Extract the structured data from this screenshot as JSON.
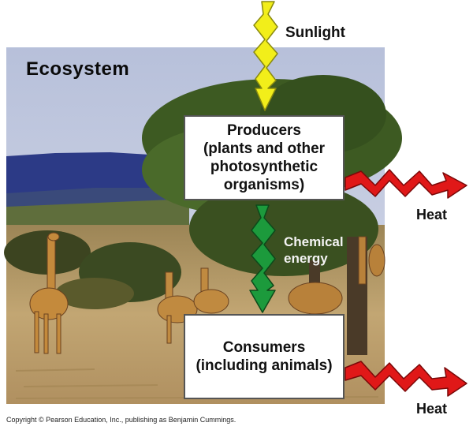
{
  "title": "Ecosystem",
  "sunlight": "Sunlight",
  "producers": {
    "line1": "Producers",
    "line2": "(plants and other",
    "line3": "photosynthetic",
    "line4": "organisms)"
  },
  "chemical_energy": {
    "line1": "Chemical",
    "line2": "energy"
  },
  "consumers": {
    "line1": "Consumers",
    "line2": "(including animals)"
  },
  "heat_top": "Heat",
  "heat_bottom": "Heat",
  "copyright": "Copyright © Pearson Education, Inc., publishing as Benjamin Cummings.",
  "colors": {
    "sunlight_arrow": "#f2ee1a",
    "chemical_arrow": "#1c9a3c",
    "heat_arrow": "#e01818",
    "box_border": "#555555",
    "sky": "#b9c2da",
    "hills": "#2c3a86",
    "savanna": "#b59a62",
    "foliage": "#3d5a22"
  }
}
